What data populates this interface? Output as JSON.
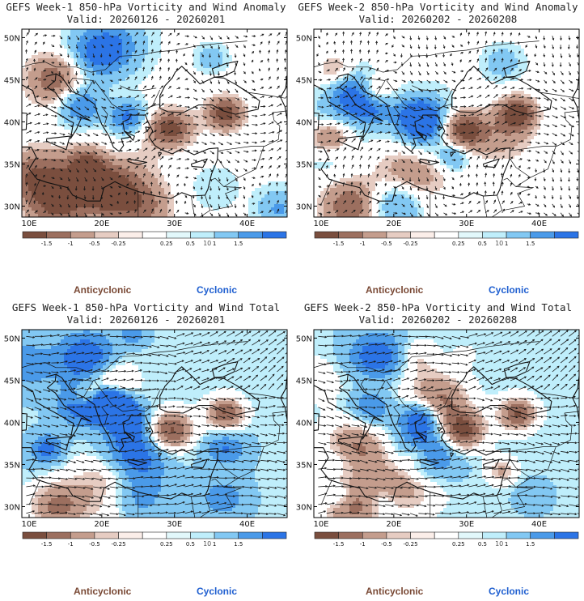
{
  "panels": [
    {
      "title": "GEFS Week-1 850-hPa Vorticity and Wind Anomaly",
      "valid": "Valid: 20260126 - 20260201",
      "kind": "anomaly",
      "seed": 11
    },
    {
      "title": "GEFS Week-2 850-hPa Vorticity and Wind Anomaly",
      "valid": "Valid: 20260202 - 20260208",
      "kind": "anomaly",
      "seed": 23
    },
    {
      "title": "GEFS Week-1 850-hPa Vorticity and Wind Total",
      "valid": "Valid: 20260126 - 20260201",
      "kind": "total",
      "seed": 37
    },
    {
      "title": "GEFS Week-2 850-hPa Vorticity and Wind Total",
      "valid": "Valid: 20260202 - 20260208",
      "kind": "total",
      "seed": 53
    }
  ],
  "map": {
    "lon_range": [
      9,
      45.5
    ],
    "lat_range": [
      28.7,
      51
    ],
    "lon_ticks": [
      "10E",
      "20E",
      "30E",
      "40E"
    ],
    "lat_ticks": [
      "50N",
      "45N",
      "40N",
      "35N",
      "30N"
    ]
  },
  "colorbar": {
    "labels": [
      "-1.5",
      "-1",
      "-0.5",
      "-0.25",
      "0.25",
      "0.5",
      "1",
      "1.5"
    ],
    "scale_label": "10",
    "colors": [
      "#7a4e3e",
      "#9c6f5f",
      "#c49d8d",
      "#e6ccc2",
      "#fbeee9",
      "#ffffff",
      "#e2f8fb",
      "#bfeefb",
      "#82c8f3",
      "#4a9ae9",
      "#2b74e6"
    ]
  },
  "legend": {
    "anticyclonic": "Anticyclonic",
    "cyclonic": "Cyclonic"
  }
}
